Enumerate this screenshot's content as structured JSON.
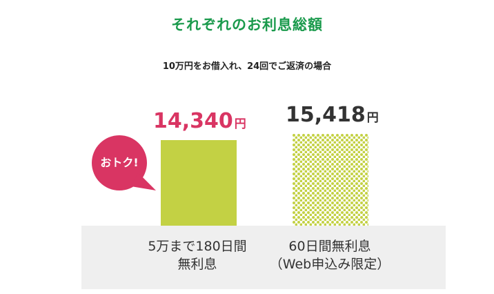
{
  "chart_data": {
    "type": "bar",
    "title": "それぞれのお利息総額",
    "subtitle": "10万円をお借入れ、24回でご返済の場合",
    "unit": "円",
    "series": [
      {
        "category": "5万まで180日間無利息",
        "category_lines": [
          "5万まで180日間",
          "無利息"
        ],
        "value": 14340,
        "value_label": "14,340",
        "color": "#c3d144",
        "value_color": "#d93563",
        "pattern": "solid"
      },
      {
        "category": "60日間無利息（Web申込み限定）",
        "category_lines": [
          "60日間無利息",
          "（Web申込み限定）"
        ],
        "value": 15418,
        "value_label": "15,418",
        "color": "#c3d144",
        "value_color": "#333333",
        "pattern": "dots"
      }
    ]
  },
  "badge": {
    "label": "おトク!",
    "color": "#d93563"
  },
  "colors": {
    "title": "#1a9a4c",
    "base": "#efefef"
  }
}
